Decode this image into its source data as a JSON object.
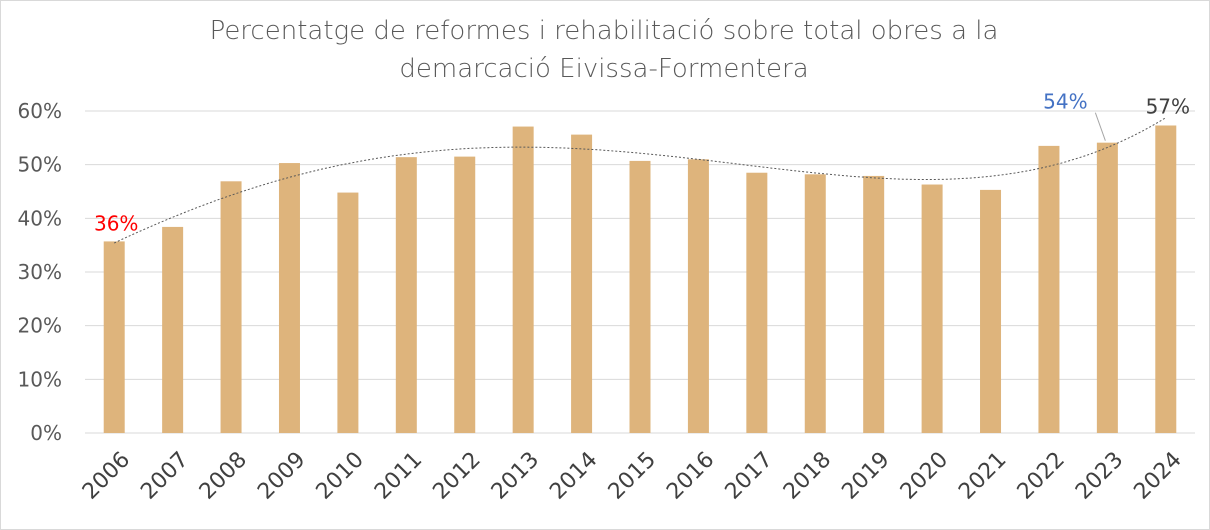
{
  "chart_data": {
    "type": "bar",
    "title_lines": [
      "Percentatge de reformes i rehabilitació sobre total obres a la",
      "demarcació Eivissa-Formentera"
    ],
    "categories": [
      "2006",
      "2007",
      "2008",
      "2009",
      "2010",
      "2011",
      "2012",
      "2013",
      "2014",
      "2015",
      "2016",
      "2017",
      "2018",
      "2019",
      "2020",
      "2021",
      "2022",
      "2023",
      "2024"
    ],
    "values": [
      35.7,
      38.4,
      46.9,
      50.3,
      44.8,
      51.4,
      51.5,
      57.1,
      55.6,
      50.7,
      51.0,
      48.5,
      48.2,
      47.9,
      46.3,
      45.3,
      53.5,
      54.1,
      57.3
    ],
    "ylim": [
      0,
      60
    ],
    "yticks": [
      "0%",
      "10%",
      "20%",
      "30%",
      "40%",
      "50%",
      "60%"
    ],
    "grid": true,
    "trendline": "polynomial",
    "data_labels": [
      {
        "index": 0,
        "text": "36%",
        "color": "#ff0000"
      },
      {
        "index": 17,
        "text": "54%",
        "color": "#4472c4"
      },
      {
        "index": 18,
        "text": "57%",
        "color": "#404040"
      }
    ],
    "bar_color": "#deb47c",
    "gridline_color": "#d9d9d9",
    "trend_color": "#595959"
  }
}
